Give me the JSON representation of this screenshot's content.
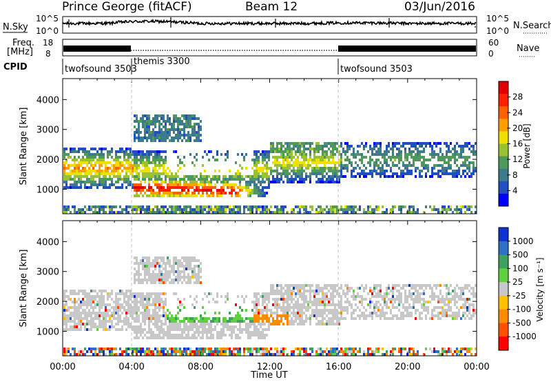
{
  "header": {
    "station": "Prince George (fitACF)",
    "beam": "Beam 12",
    "date": "03/Jun/2016"
  },
  "noise_panel": {
    "left_label": "N.Sky",
    "right_label": "N.Search",
    "left_ticks": [
      "10^5",
      "10^0"
    ],
    "right_ticks": [
      "10^5",
      "10^0"
    ]
  },
  "freq_panel": {
    "left_label_line1": "Freq.",
    "left_label_line2": "[MHz]",
    "right_label": "Nave",
    "left_ticks": [
      "18",
      "8"
    ],
    "right_ticks": [
      "60",
      "0"
    ]
  },
  "cpid_panel": {
    "label": "CPID",
    "segments": [
      {
        "name": "twofsound 3503",
        "start_h": 0,
        "end_h": 4
      },
      {
        "name": "themis 3300",
        "start_h": 4,
        "end_h": 16
      },
      {
        "name": "twofsound 3503",
        "start_h": 16,
        "end_h": 24
      }
    ]
  },
  "colors": {
    "power": [
      "#0000ff",
      "#2050c0",
      "#3c7a8c",
      "#4f9a5a",
      "#9ac034",
      "#f0e000",
      "#ffa000",
      "#ff6000",
      "#ff2000",
      "#e00000"
    ],
    "velocity": [
      "#1030d0",
      "#3070c0",
      "#40a060",
      "#60d040",
      "#c8c8c8",
      "#ffc000",
      "#ff8c00",
      "#ff5000",
      "#ff0000"
    ]
  },
  "chart_data": [
    {
      "type": "heatmap",
      "panel": "power",
      "xlabel": "",
      "ylabel": "Slant Range [km]",
      "xlim": [
        0,
        24
      ],
      "ylim": [
        180,
        4700
      ],
      "yticks": [
        1000,
        2000,
        3000,
        4000
      ],
      "colorbar": {
        "label": "Power [dB]",
        "range": [
          0,
          32
        ],
        "ticks": [
          "4",
          "8",
          "12",
          "16",
          "20",
          "24",
          "28"
        ]
      }
    },
    {
      "type": "heatmap",
      "panel": "velocity",
      "xlabel": "Time UT",
      "ylabel": "Slant Range [km]",
      "xlim": [
        0,
        24
      ],
      "ylim": [
        180,
        4700
      ],
      "yticks": [
        1000,
        2000,
        3000,
        4000
      ],
      "xticks": [
        "00:00",
        "04:00",
        "08:00",
        "12:00",
        "16:00",
        "20:00",
        "00:00"
      ],
      "colorbar": {
        "label": "Velocity [m s⁻¹]",
        "ticks": [
          "1000",
          "500",
          "100",
          "25",
          "-25",
          "-100",
          "-500",
          "-1000"
        ]
      }
    }
  ]
}
